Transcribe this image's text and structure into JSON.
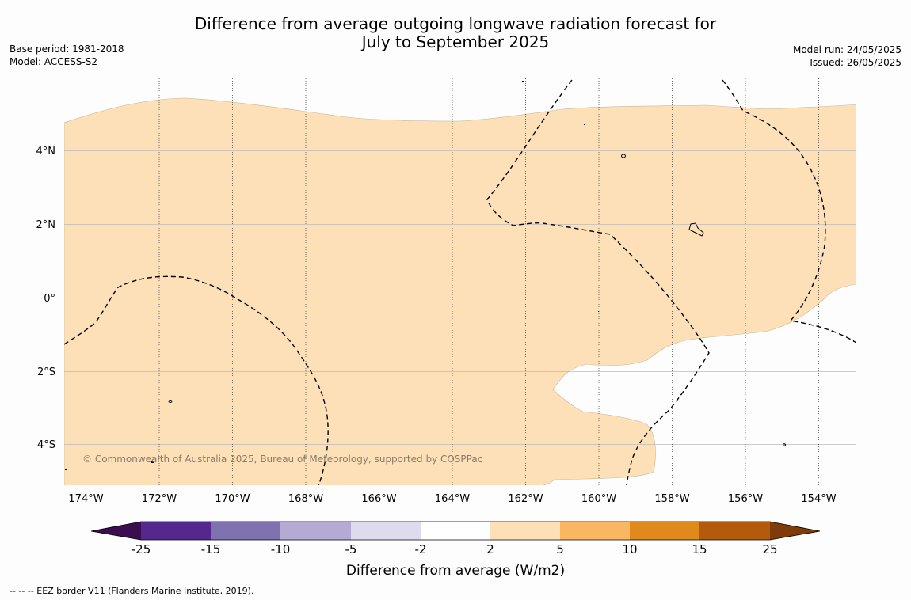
{
  "title_line1": "Difference from average outgoing longwave radiation forecast for",
  "title_line2": "July to September 2025",
  "base_period": "Base period: 1981-2018",
  "model": "Model: ACCESS-S2",
  "model_run": "Model run: 24/05/2025",
  "issued": "Issued: 26/05/2025",
  "copyright": "© Commonwealth of Australia 2025, Bureau of Meteorology, supported by COSPPac",
  "footer": "--  --  -- EEZ border V11 (Flanders Marine Institute, 2019).",
  "longitude_labels": [
    "174°W",
    "172°W",
    "170°W",
    "168°W",
    "166°W",
    "164°W",
    "162°W",
    "160°W",
    "158°W",
    "156°W",
    "154°W"
  ],
  "latitude_labels": [
    "4°N",
    "2°N",
    "0°",
    "2°S",
    "4°S"
  ],
  "colorbar": {
    "title": "Difference from average (W/m2)",
    "ticks": [
      "-25",
      "-15",
      "-10",
      "-5",
      "-2",
      "2",
      "5",
      "10",
      "15",
      "25"
    ],
    "colors": [
      "#3b0f4f",
      "#54288c",
      "#7e72b0",
      "#b4abd4",
      "#dcdcee",
      "#ffffff",
      "#fde0b8",
      "#fbb662",
      "#e08a1e",
      "#b35a0b",
      "#7f3b08"
    ]
  },
  "map_colors": {
    "anomaly_2_to_5": "#fde0b8",
    "neutral": "#ffffff"
  }
}
